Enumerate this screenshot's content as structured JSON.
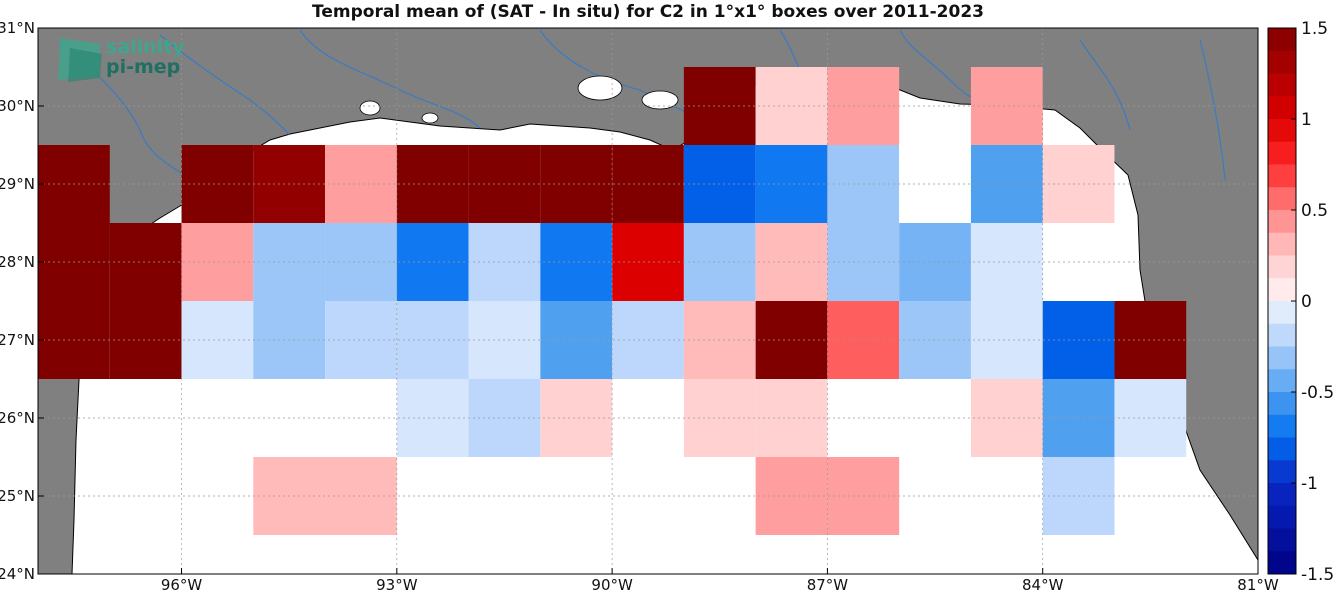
{
  "title": "Temporal mean of (SAT - In situ) for C2 in 1°x1° boxes over 2011-2023",
  "logo": {
    "line1": "salinity",
    "line2": "pi-mep"
  },
  "axes": {
    "xlim": [
      -98,
      -81
    ],
    "ylim": [
      24,
      31
    ],
    "xticks": [
      {
        "value": -96,
        "label": "96°W"
      },
      {
        "value": -93,
        "label": "93°W"
      },
      {
        "value": -90,
        "label": "90°W"
      },
      {
        "value": -87,
        "label": "87°W"
      },
      {
        "value": -84,
        "label": "84°W"
      },
      {
        "value": -81,
        "label": "81°W"
      }
    ],
    "yticks": [
      {
        "value": 24,
        "label": "24°N"
      },
      {
        "value": 25,
        "label": "25°N"
      },
      {
        "value": 26,
        "label": "26°N"
      },
      {
        "value": 27,
        "label": "27°N"
      },
      {
        "value": 28,
        "label": "28°N"
      },
      {
        "value": 29,
        "label": "29°N"
      },
      {
        "value": 30,
        "label": "30°N"
      },
      {
        "value": 31,
        "label": "31°N"
      }
    ],
    "grid": true
  },
  "colorbar": {
    "range": [
      -1.5,
      1.5
    ],
    "levels": 24,
    "ticks": [
      {
        "value": 1.5,
        "label": "1.5"
      },
      {
        "value": 1,
        "label": "1"
      },
      {
        "value": 0.5,
        "label": "0.5"
      },
      {
        "value": 0,
        "label": "0"
      },
      {
        "value": -0.5,
        "label": "-0.5"
      },
      {
        "value": -1,
        "label": "-1"
      },
      {
        "value": -1.5,
        "label": "-1.5"
      }
    ]
  },
  "colors": {
    "land": "#808080",
    "ocean": "#ffffff",
    "rivers": "#3a7cc0",
    "coastline": "#000000"
  },
  "chart_data": {
    "type": "heatmap",
    "box_size_deg": 1,
    "cells": [
      {
        "lon": -97.5,
        "lat": 29,
        "value": 1.5,
        "shape": "coast"
      },
      {
        "lon": -95.5,
        "lat": 29,
        "value": 1.5,
        "shape": "coast"
      },
      {
        "lon": -94.5,
        "lat": 29,
        "value": 1.4
      },
      {
        "lon": -93.5,
        "lat": 29,
        "value": 0.4
      },
      {
        "lon": -92.5,
        "lat": 29,
        "value": 1.5
      },
      {
        "lon": -91.5,
        "lat": 29,
        "value": 1.5
      },
      {
        "lon": -90.5,
        "lat": 29,
        "value": 1.5
      },
      {
        "lon": -89.5,
        "lat": 29,
        "value": 1.5
      },
      {
        "lon": -88.5,
        "lat": 30,
        "value": 1.5
      },
      {
        "lon": -87.5,
        "lat": 30,
        "value": 0.2
      },
      {
        "lon": -86.5,
        "lat": 30,
        "value": 0.4
      },
      {
        "lon": -84.5,
        "lat": 30,
        "value": 0.4
      },
      {
        "lon": -88.5,
        "lat": 29,
        "value": -0.8
      },
      {
        "lon": -87.5,
        "lat": 29,
        "value": -0.7
      },
      {
        "lon": -86.5,
        "lat": 29,
        "value": -0.3
      },
      {
        "lon": -85.5,
        "lat": 29,
        "value": 0
      },
      {
        "lon": -84.5,
        "lat": 29,
        "value": -0.5
      },
      {
        "lon": -83.5,
        "lat": 29,
        "value": 0.2
      },
      {
        "lon": -97.5,
        "lat": 28,
        "value": 1.5,
        "shape": "coast"
      },
      {
        "lon": -96.5,
        "lat": 28,
        "value": 1.5
      },
      {
        "lon": -95.5,
        "lat": 28,
        "value": 0.4
      },
      {
        "lon": -94.5,
        "lat": 28,
        "value": -0.3
      },
      {
        "lon": -93.5,
        "lat": 28,
        "value": -0.3
      },
      {
        "lon": -92.5,
        "lat": 28,
        "value": -0.7
      },
      {
        "lon": -91.5,
        "lat": 28,
        "value": -0.2
      },
      {
        "lon": -90.5,
        "lat": 28,
        "value": -0.7
      },
      {
        "lon": -89.5,
        "lat": 28,
        "value": 1.0
      },
      {
        "lon": -88.5,
        "lat": 28,
        "value": -0.3
      },
      {
        "lon": -87.5,
        "lat": 28,
        "value": 0.3
      },
      {
        "lon": -86.5,
        "lat": 28,
        "value": -0.3
      },
      {
        "lon": -85.5,
        "lat": 28,
        "value": -0.4
      },
      {
        "lon": -84.5,
        "lat": 28,
        "value": -0.1
      },
      {
        "lon": -83.5,
        "lat": 28,
        "value": 0
      },
      {
        "lon": -97.5,
        "lat": 27,
        "value": 1.5,
        "shape": "coast"
      },
      {
        "lon": -96.5,
        "lat": 27,
        "value": 1.5
      },
      {
        "lon": -95.5,
        "lat": 27,
        "value": -0.1
      },
      {
        "lon": -94.5,
        "lat": 27,
        "value": -0.3
      },
      {
        "lon": -93.5,
        "lat": 27,
        "value": -0.2
      },
      {
        "lon": -92.5,
        "lat": 27,
        "value": -0.2
      },
      {
        "lon": -91.5,
        "lat": 27,
        "value": -0.1
      },
      {
        "lon": -90.5,
        "lat": 27,
        "value": -0.5
      },
      {
        "lon": -89.5,
        "lat": 27,
        "value": -0.2
      },
      {
        "lon": -88.5,
        "lat": 27,
        "value": 0.3
      },
      {
        "lon": -87.5,
        "lat": 27,
        "value": 1.5
      },
      {
        "lon": -86.5,
        "lat": 27,
        "value": 0.6
      },
      {
        "lon": -85.5,
        "lat": 27,
        "value": -0.3
      },
      {
        "lon": -84.5,
        "lat": 27,
        "value": -0.1
      },
      {
        "lon": -83.5,
        "lat": 27,
        "value": -0.8
      },
      {
        "lon": -82.5,
        "lat": 27,
        "value": 1.5,
        "shape": "coast"
      },
      {
        "lon": -92.5,
        "lat": 26,
        "value": -0.1
      },
      {
        "lon": -91.5,
        "lat": 26,
        "value": -0.2
      },
      {
        "lon": -90.5,
        "lat": 26,
        "value": 0.2
      },
      {
        "lon": -88.5,
        "lat": 26,
        "value": 0.2
      },
      {
        "lon": -87.5,
        "lat": 26,
        "value": 0.2
      },
      {
        "lon": -84.5,
        "lat": 26,
        "value": 0.2
      },
      {
        "lon": -83.5,
        "lat": 26,
        "value": -0.5
      },
      {
        "lon": -82.5,
        "lat": 26,
        "value": -0.1
      },
      {
        "lon": -94.5,
        "lat": 25,
        "value": 0.3
      },
      {
        "lon": -93.5,
        "lat": 25,
        "value": 0.3
      },
      {
        "lon": -87.5,
        "lat": 25,
        "value": 0.4
      },
      {
        "lon": -86.5,
        "lat": 25,
        "value": 0.4
      },
      {
        "lon": -83.5,
        "lat": 25,
        "value": -0.2
      }
    ]
  }
}
